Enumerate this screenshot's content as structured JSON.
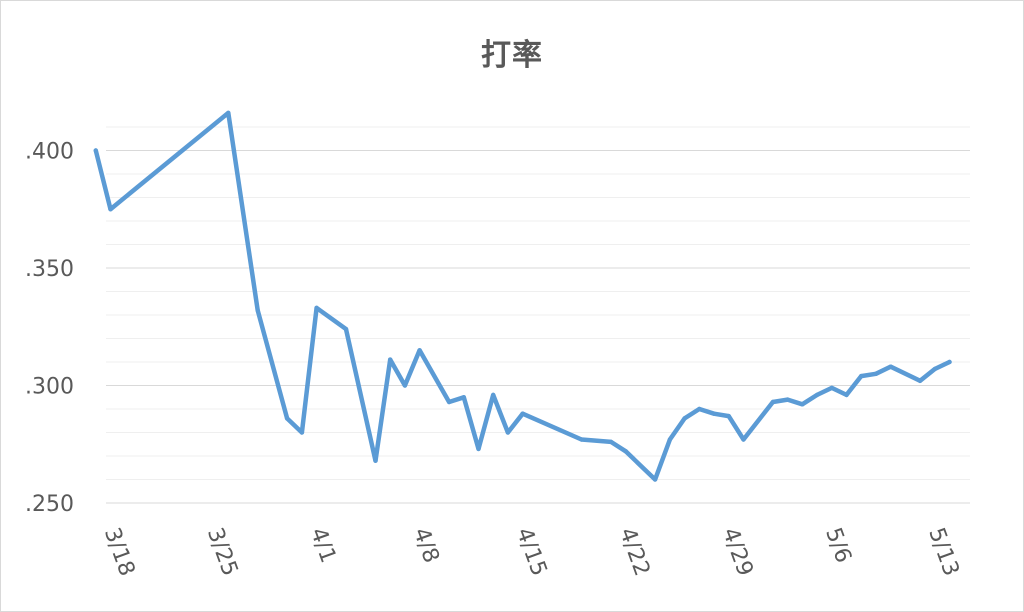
{
  "chart_data": {
    "type": "line",
    "title": "打率",
    "xlabel": "",
    "ylabel": "",
    "ylim": [
      0.25,
      0.41
    ],
    "y_ticks": [
      {
        "value": 0.25,
        "label": ".250"
      },
      {
        "value": 0.3,
        "label": ".300"
      },
      {
        "value": 0.35,
        "label": ".350"
      },
      {
        "value": 0.4,
        "label": ".400"
      }
    ],
    "x_tick_labels": [
      "3/18",
      "3/25",
      "4/1",
      "4/8",
      "4/15",
      "4/22",
      "4/29",
      "5/6",
      "5/13"
    ],
    "grid": true,
    "line_color": "#5b9bd5",
    "series": [
      {
        "x": [
          "3/17",
          "3/18",
          "3/26",
          "3/28",
          "3/30",
          "3/31",
          "4/1",
          "4/3",
          "4/5",
          "4/6",
          "4/7",
          "4/8",
          "4/10",
          "4/11",
          "4/12",
          "4/13",
          "4/14",
          "4/15",
          "4/19",
          "4/21",
          "4/22",
          "4/24",
          "4/25",
          "4/26",
          "4/27",
          "4/28",
          "4/29",
          "4/30",
          "5/2",
          "5/3",
          "5/4",
          "5/5",
          "5/6",
          "5/7",
          "5/8",
          "5/9",
          "5/10",
          "5/12",
          "5/13",
          "5/14"
        ],
        "values": [
          0.4,
          0.375,
          0.416,
          0.332,
          0.286,
          0.28,
          0.333,
          0.324,
          0.268,
          0.311,
          0.3,
          0.315,
          0.293,
          0.295,
          0.273,
          0.296,
          0.28,
          0.288,
          0.277,
          0.276,
          0.272,
          0.26,
          0.277,
          0.286,
          0.29,
          0.288,
          0.287,
          0.277,
          0.293,
          0.294,
          0.292,
          0.296,
          0.299,
          0.296,
          0.304,
          0.305,
          0.308,
          0.302,
          0.307,
          0.31
        ]
      }
    ]
  }
}
